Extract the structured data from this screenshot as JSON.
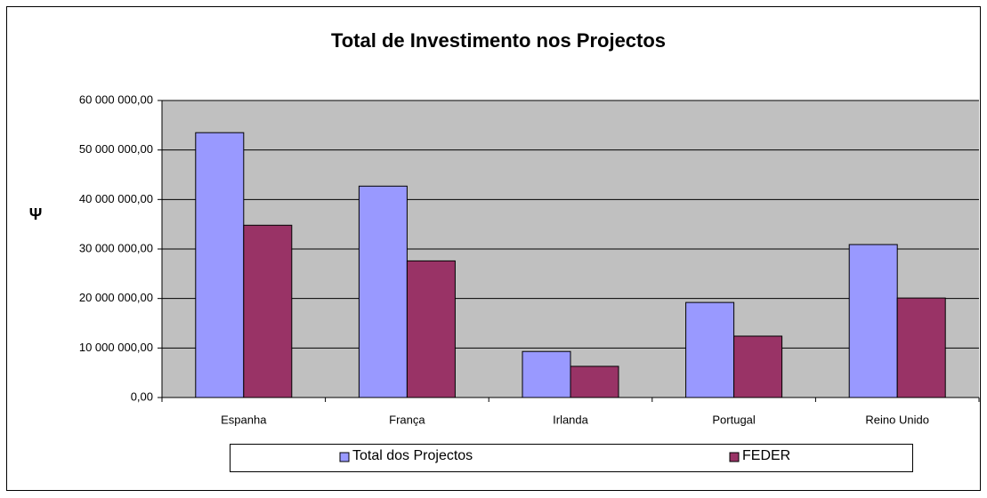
{
  "chart_data": {
    "type": "bar",
    "title": "Total de Investimento nos Projectos",
    "y_label": "Ψ",
    "categories": [
      "Espanha",
      "França",
      "Irlanda",
      "Portugal",
      "Reino Unido"
    ],
    "series": [
      {
        "name": "Total dos Projectos",
        "color": "#9999ff",
        "values": [
          53500000,
          42700000,
          9300000,
          19200000,
          30900000
        ]
      },
      {
        "name": "FEDER",
        "color": "#993366",
        "values": [
          34800000,
          27600000,
          6300000,
          12400000,
          20100000
        ]
      }
    ],
    "ylim": [
      0,
      60000000
    ],
    "yticks": [
      {
        "value": 0,
        "label": "0,00"
      },
      {
        "value": 10000000,
        "label": "10 000 000,00"
      },
      {
        "value": 20000000,
        "label": "20 000 000,00"
      },
      {
        "value": 30000000,
        "label": "30 000 000,00"
      },
      {
        "value": 40000000,
        "label": "40 000 000,00"
      },
      {
        "value": 50000000,
        "label": "50 000 000,00"
      },
      {
        "value": 60000000,
        "label": "60 000 000,00"
      }
    ],
    "grid": true,
    "legend": "bottom"
  }
}
